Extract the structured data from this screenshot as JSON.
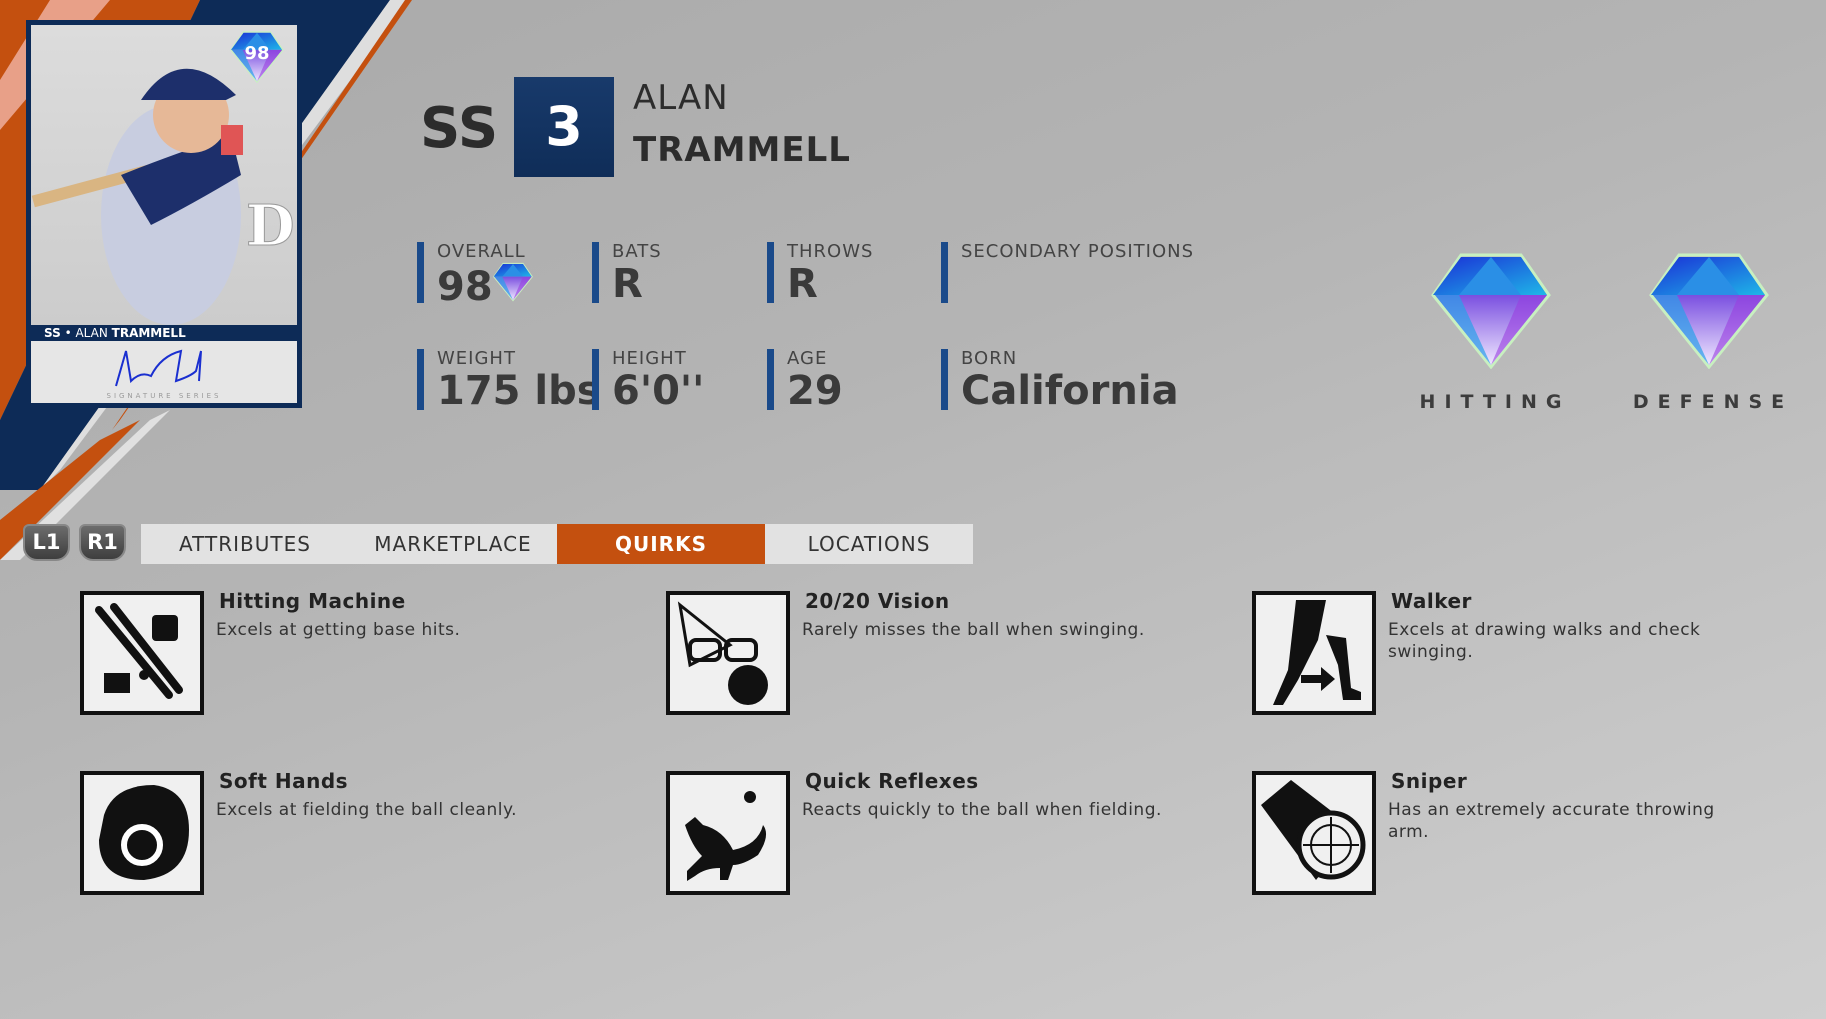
{
  "card": {
    "rating": "98",
    "caption_pos": "SS",
    "caption_sep": " • ",
    "caption_first": "ALAN ",
    "caption_last": "TRAMMELL",
    "series": "SIGNATURE SERIES",
    "signature": "Alan Trammell"
  },
  "player": {
    "position": "SS",
    "number": "3",
    "first_name": "ALAN",
    "last_name": "TRAMMELL"
  },
  "stats": [
    {
      "label": "OVERALL",
      "value": "98"
    },
    {
      "label": "BATS",
      "value": "R"
    },
    {
      "label": "THROWS",
      "value": "R"
    },
    {
      "label": "SECONDARY POSITIONS",
      "value": ""
    },
    {
      "label": "WEIGHT",
      "value": "175 lbs"
    },
    {
      "label": "HEIGHT",
      "value": "6'0''"
    },
    {
      "label": "AGE",
      "value": "29"
    },
    {
      "label": "BORN",
      "value": "California"
    }
  ],
  "ratings": [
    {
      "label": "HITTING",
      "tier": "diamond"
    },
    {
      "label": "DEFENSE",
      "tier": "diamond"
    }
  ],
  "nav": {
    "prev_button": "L1",
    "next_button": "R1"
  },
  "tabs": [
    {
      "label": "ATTRIBUTES"
    },
    {
      "label": "MARKETPLACE"
    },
    {
      "label": "QUIRKS",
      "active": true
    },
    {
      "label": "LOCATIONS"
    }
  ],
  "colors": {
    "accent": "#c4500f",
    "navy": "#0d2b57",
    "stat_bar": "#1a4a8a"
  },
  "quirks": [
    {
      "title": "Hitting Machine",
      "desc": "Excels at getting base hits.",
      "icon": "bats-ball-icon"
    },
    {
      "title": "20/20 Vision",
      "desc": "Rarely misses the ball when swinging.",
      "icon": "glasses-ball-icon"
    },
    {
      "title": "Walker",
      "desc": "Excels at drawing walks and check swinging.",
      "icon": "walking-legs-icon"
    },
    {
      "title": "Soft Hands",
      "desc": "Excels at fielding the ball cleanly.",
      "icon": "glove-icon"
    },
    {
      "title": "Quick Reflexes",
      "desc": "Reacts quickly to the ball when fielding.",
      "icon": "cat-pounce-icon"
    },
    {
      "title": "Sniper",
      "desc": "Has an extremely accurate throwing arm.",
      "icon": "scope-crosshair-icon"
    }
  ]
}
